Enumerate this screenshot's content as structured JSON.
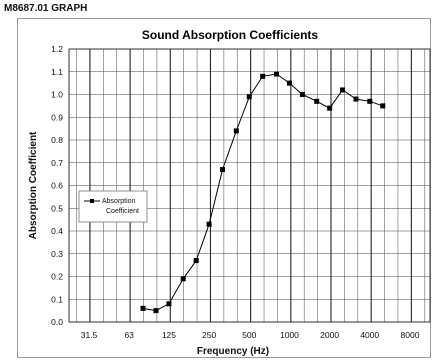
{
  "page_label": "M8687.01 GRAPH",
  "chart_data": {
    "type": "line",
    "title": "Sound Absorption Coefficients",
    "xlabel": "Frequency (Hz)",
    "ylabel": "Absorption Coefficient",
    "x_scale": "log2",
    "x_ticks": [
      31.5,
      63,
      125,
      250,
      500,
      1000,
      2000,
      4000,
      8000
    ],
    "x_tick_labels": [
      "31.5",
      "63",
      "125",
      "250",
      "500",
      "1000",
      "2000",
      "4000",
      "8000"
    ],
    "xlim": [
      22.3,
      11300
    ],
    "ylim": [
      0,
      1.2
    ],
    "y_ticks": [
      0.0,
      0.1,
      0.2,
      0.3,
      0.4,
      0.5,
      0.6,
      0.7,
      0.8,
      0.9,
      1.0,
      1.1,
      1.2
    ],
    "y_tick_labels": [
      "0.0",
      "0.1",
      "0.2",
      "0.3",
      "0.4",
      "0.5",
      "0.6",
      "0.7",
      "0.8",
      "0.9",
      "1.0",
      "1.1",
      "1.2"
    ],
    "grid": true,
    "legend": {
      "position": "left-middle",
      "entries": [
        "Absorption",
        "Coefficient"
      ]
    },
    "series": [
      {
        "name": "Absorption Coefficient",
        "color": "#000000",
        "marker": "square",
        "x": [
          80,
          100,
          125,
          160,
          200,
          250,
          315,
          400,
          500,
          630,
          800,
          1000,
          1250,
          1600,
          2000,
          2500,
          3150,
          4000,
          5000
        ],
        "y": [
          0.06,
          0.05,
          0.08,
          0.19,
          0.27,
          0.43,
          0.67,
          0.84,
          0.99,
          1.08,
          1.09,
          1.05,
          1.0,
          0.97,
          0.94,
          1.02,
          0.98,
          0.97,
          0.95
        ]
      }
    ]
  }
}
